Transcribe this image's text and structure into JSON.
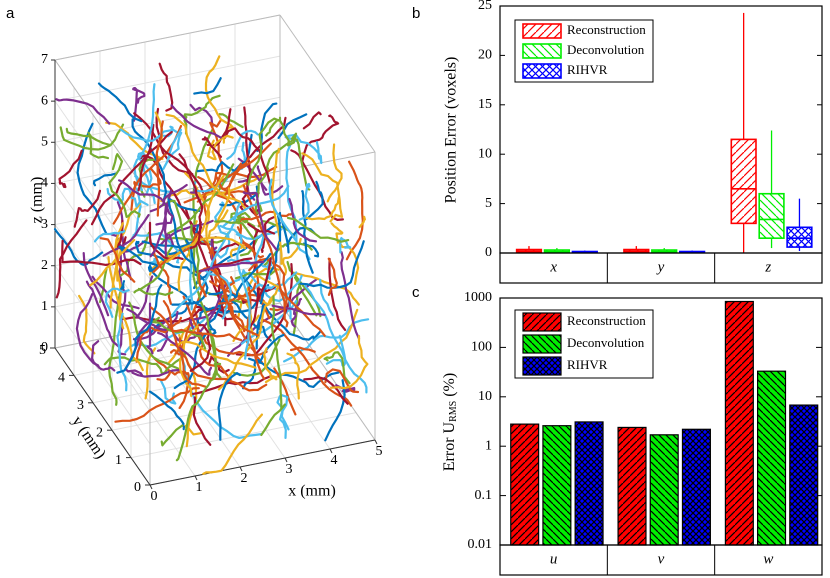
{
  "chart_data": [
    {
      "type": "trajectory3d",
      "panel_label": "a",
      "xlabel": "x (mm)",
      "ylabel": "y (mm)",
      "zlabel": "z (mm)",
      "xlim": [
        0,
        5
      ],
      "ylim": [
        0,
        5
      ],
      "zlim": [
        0,
        7
      ],
      "xticks": [
        0,
        1,
        2,
        3,
        4,
        5
      ],
      "yticks": [
        0,
        1,
        2,
        3,
        4,
        5
      ],
      "zticks": [
        0,
        1,
        2,
        3,
        4,
        5,
        6,
        7
      ],
      "grid": true,
      "colors": [
        "#0072bd",
        "#d95319",
        "#edb120",
        "#7e2f8e",
        "#77ac30",
        "#4dbeee",
        "#a2142f"
      ]
    },
    {
      "type": "box",
      "panel_label": "b",
      "ylabel": "Position Error (voxels)",
      "categories": [
        "x",
        "y",
        "z"
      ],
      "ylim": [
        0,
        25
      ],
      "yticks": [
        0,
        5,
        10,
        15,
        20,
        25
      ],
      "series": [
        {
          "name": "Reconstruction",
          "color": "#ff0000",
          "hatch": "/",
          "min": [
            0,
            0,
            0
          ],
          "q1": [
            0.1,
            0.1,
            3
          ],
          "median": [
            0.2,
            0.2,
            6.5
          ],
          "q3": [
            0.35,
            0.35,
            11.5
          ],
          "max": [
            0.7,
            0.7,
            24.3
          ]
        },
        {
          "name": "Deconvolution",
          "color": "#00ee00",
          "hatch": "\\",
          "min": [
            0,
            0,
            0.5
          ],
          "q1": [
            0.1,
            0.1,
            1.5
          ],
          "median": [
            0.15,
            0.15,
            3.4
          ],
          "q3": [
            0.3,
            0.3,
            6
          ],
          "max": [
            0.5,
            0.5,
            12.4
          ]
        },
        {
          "name": "RIHVR",
          "color": "#0000ff",
          "hatch": "x",
          "min": [
            0,
            0,
            0.2
          ],
          "q1": [
            0.05,
            0.05,
            0.6
          ],
          "median": [
            0.1,
            0.1,
            1.5
          ],
          "q3": [
            0.15,
            0.15,
            2.6
          ],
          "max": [
            0.25,
            0.25,
            5.5
          ]
        }
      ]
    },
    {
      "type": "bar",
      "panel_label": "c",
      "log_scale": true,
      "ylabel": {
        "text": "Error U",
        "subscript": "RMS",
        "unit": "(%)"
      },
      "categories": [
        "u",
        "v",
        "w"
      ],
      "ylim": [
        0.01,
        1000
      ],
      "yticks": [
        0.01,
        0.1,
        1,
        10,
        100,
        1000
      ],
      "series": [
        {
          "name": "Reconstruction",
          "color": "#ff0000",
          "hatch": "/",
          "values": [
            2.8,
            2.4,
            850
          ]
        },
        {
          "name": "Deconvolution",
          "color": "#00ee00",
          "hatch": "\\",
          "values": [
            2.6,
            1.7,
            33
          ]
        },
        {
          "name": "RIHVR",
          "color": "#0000ff",
          "hatch": "x",
          "values": [
            3.1,
            2.2,
            6.8
          ]
        }
      ]
    }
  ]
}
